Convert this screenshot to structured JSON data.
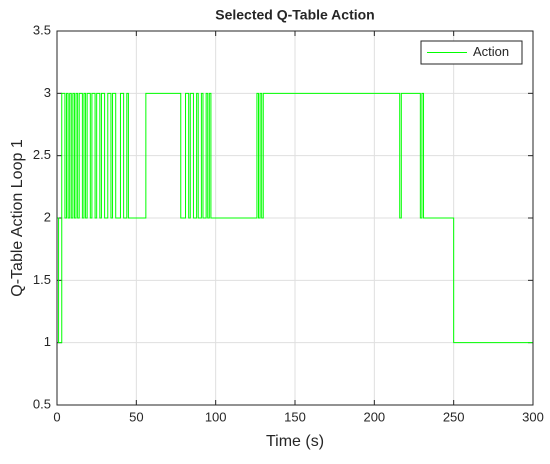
{
  "chart_data": {
    "type": "line",
    "title": "Selected Q-Table Action",
    "x_label": "Time (s)",
    "y_label": "Q-Table Action Loop 1",
    "xlim": [
      0,
      300
    ],
    "xticks": [
      0,
      50,
      100,
      150,
      200,
      250,
      300
    ],
    "ylim": [
      0.5,
      3.5
    ],
    "yticks": [
      0.5,
      1,
      1.5,
      2,
      2.5,
      3,
      3.5
    ],
    "grid": true,
    "legend": "top-right",
    "series": [
      {
        "name": "Action",
        "color": "#00ff00",
        "x": [
          0,
          1,
          1,
          3,
          3,
          5,
          5,
          6,
          6,
          7,
          7,
          8,
          8,
          9,
          9,
          10,
          10,
          11,
          11,
          12,
          12,
          13,
          13,
          14,
          14,
          16,
          16,
          17,
          17,
          18,
          18,
          19,
          19,
          21,
          21,
          22,
          22,
          24,
          24,
          25,
          25,
          27,
          27,
          28,
          28,
          30,
          30,
          32,
          32,
          34,
          34,
          35,
          35,
          37,
          37,
          40,
          40,
          42,
          42,
          44,
          44,
          45,
          45,
          56,
          56,
          78,
          78,
          81,
          81,
          83,
          83,
          84,
          84,
          86,
          86,
          88,
          88,
          89,
          89,
          91,
          91,
          92,
          92,
          94,
          94,
          95,
          95,
          96,
          96,
          97,
          97,
          126,
          126,
          127,
          127,
          128,
          128,
          129,
          129,
          130,
          130,
          216,
          216,
          217,
          217,
          229,
          229,
          230,
          230,
          231,
          231,
          250,
          250,
          300
        ],
        "values": [
          2,
          2,
          1,
          1,
          3,
          3,
          2,
          2,
          3,
          3,
          2,
          2,
          3,
          3,
          2,
          2,
          3,
          3,
          2,
          2,
          3,
          3,
          2,
          2,
          3,
          3,
          2,
          2,
          3,
          3,
          2,
          2,
          3,
          3,
          2,
          2,
          3,
          3,
          2,
          2,
          3,
          3,
          2,
          2,
          3,
          3,
          2,
          2,
          3,
          3,
          2,
          2,
          3,
          3,
          2,
          2,
          3,
          3,
          2,
          2,
          3,
          3,
          2,
          2,
          3,
          3,
          2,
          2,
          3,
          3,
          2,
          2,
          3,
          3,
          2,
          2,
          3,
          3,
          2,
          2,
          3,
          3,
          2,
          2,
          3,
          3,
          2,
          2,
          3,
          3,
          2,
          2,
          3,
          3,
          2,
          2,
          3,
          3,
          2,
          2,
          3,
          3,
          2,
          2,
          3,
          3,
          2,
          2,
          3,
          3,
          2,
          2,
          1,
          1
        ]
      }
    ]
  }
}
